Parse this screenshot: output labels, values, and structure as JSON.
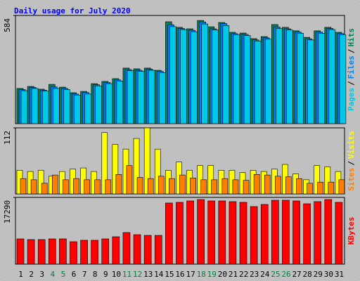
{
  "chart_data": {
    "type": "bar",
    "title": "Daily usage for July 2020",
    "categories": [
      "1",
      "2",
      "3",
      "4",
      "5",
      "6",
      "7",
      "8",
      "9",
      "10",
      "11",
      "12",
      "13",
      "14",
      "15",
      "16",
      "17",
      "18",
      "19",
      "20",
      "21",
      "22",
      "23",
      "24",
      "25",
      "26",
      "27",
      "28",
      "29",
      "30",
      "31"
    ],
    "category_colors": [
      "#000000",
      "#000000",
      "#000000",
      "#008040",
      "#008040",
      "#000000",
      "#000000",
      "#000000",
      "#000000",
      "#000000",
      "#008040",
      "#008040",
      "#000000",
      "#000000",
      "#000000",
      "#000000",
      "#000000",
      "#008040",
      "#008040",
      "#000000",
      "#000000",
      "#000000",
      "#000000",
      "#000000",
      "#008040",
      "#008040",
      "#000000",
      "#000000",
      "#000000",
      "#000000",
      "#000000"
    ],
    "legend_separator": "/",
    "panels": [
      {
        "ylim": [
          0,
          584
        ],
        "yticks": [
          584
        ],
        "series": [
          {
            "name": "Hits",
            "color": "#00805c",
            "values": [
              190,
              201,
              186,
              212,
              197,
              167,
              174,
              216,
              228,
              243,
              300,
              296,
              300,
              288,
              550,
              520,
              512,
              557,
              523,
              546,
              493,
              489,
              459,
              470,
              535,
              520,
              501,
              466,
              501,
              520,
              493
            ]
          },
          {
            "name": "Files",
            "color": "#0080ff",
            "values": [
              184,
              196,
              181,
              198,
              190,
              160,
              168,
              210,
              222,
              236,
              292,
              288,
              294,
              282,
              534,
              514,
              504,
              549,
              512,
              540,
              486,
              482,
              452,
              463,
              522,
              512,
              494,
              458,
              494,
              514,
              486
            ]
          },
          {
            "name": "Pages",
            "color": "#00c8e8",
            "values": [
              178,
              190,
              176,
              190,
              184,
              154,
              160,
              204,
              216,
              230,
              286,
              282,
              288,
              276,
              524,
              508,
              496,
              538,
              506,
              530,
              480,
              476,
              446,
              456,
              514,
              506,
              488,
              452,
              488,
              508,
              480
            ]
          }
        ]
      },
      {
        "ylim": [
          0,
          112
        ],
        "yticks": [
          112
        ],
        "series": [
          {
            "name": "Visits",
            "color": "#ffff00",
            "values": [
              40,
              38,
              40,
              30,
              38,
              42,
              44,
              38,
              104,
              84,
              76,
              94,
              112,
              76,
              40,
              54,
              40,
              48,
              48,
              40,
              40,
              36,
              40,
              38,
              42,
              50,
              34,
              24,
              48,
              46,
              38
            ]
          },
          {
            "name": "Sites",
            "color": "#ff8000",
            "values": [
              26,
              24,
              18,
              32,
              24,
              26,
              24,
              24,
              24,
              33,
              48,
              28,
              26,
              30,
              26,
              32,
              27,
              24,
              24,
              26,
              24,
              23,
              33,
              32,
              30,
              29,
              26,
              18,
              20,
              20,
              24
            ]
          }
        ]
      },
      {
        "ylim": [
          0,
          17290
        ],
        "yticks": [
          17290
        ],
        "series": [
          {
            "name": "KBytes",
            "color": "#ff0000",
            "values": [
              6550,
              6370,
              6370,
              6550,
              6550,
              5820,
              6190,
              6190,
              6550,
              7100,
              8190,
              7640,
              7460,
              7460,
              15840,
              16020,
              16380,
              16740,
              16380,
              16380,
              16200,
              16020,
              14920,
              15470,
              16560,
              16560,
              16380,
              15650,
              16200,
              16740,
              16020
            ]
          }
        ]
      }
    ]
  }
}
